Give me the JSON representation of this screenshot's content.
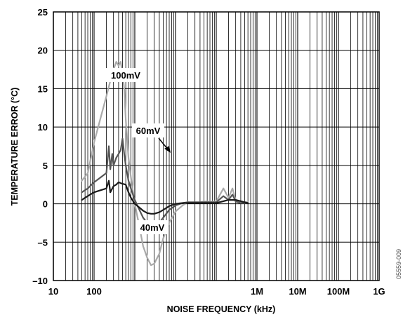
{
  "chart_data": {
    "type": "line",
    "xlabel": "NOISE FREQUENCY (kHz)",
    "ylabel": "TEMPERATURE ERROR (°C)",
    "x_scale": "log",
    "xlim": [
      10,
      1000000000
    ],
    "ylim": [
      -10,
      25
    ],
    "grid": true,
    "x_ticks": [
      10,
      100,
      1000000,
      10000000,
      100000000,
      1000000000
    ],
    "x_tick_labels": [
      "10",
      "100",
      "1M",
      "10M",
      "100M",
      "1G"
    ],
    "y_ticks": [
      -10,
      -5,
      0,
      5,
      10,
      15,
      20,
      25
    ],
    "y_tick_labels": [
      "–10",
      "–5",
      "0",
      "5",
      "10",
      "15",
      "20",
      "25"
    ],
    "figure_id": "05559-009",
    "series": [
      {
        "name": "100mV",
        "color": "#aaaaaa",
        "x": [
          50,
          70,
          100,
          150,
          200,
          250,
          300,
          350,
          400,
          450,
          500,
          550,
          600,
          700,
          800,
          1000,
          1300,
          1600,
          2000,
          2500,
          3000,
          4000,
          5000,
          7000,
          10000,
          15000,
          20000,
          30000,
          50000,
          100000,
          150000,
          200000,
          250000,
          300000,
          400000,
          600000
        ],
        "y": [
          3,
          4,
          8,
          11.5,
          14,
          16,
          17.5,
          18.5,
          18,
          18.5,
          17,
          15,
          11,
          6,
          3.5,
          0,
          -3,
          -5.5,
          -7,
          -8,
          -7.8,
          -6.5,
          -4.5,
          -2.5,
          -1,
          -0.2,
          0.2,
          0.1,
          0.3,
          0.3,
          2,
          0.8,
          2,
          0.5,
          0.2,
          0.2
        ]
      },
      {
        "name": "60mV",
        "color": "#555555",
        "x": [
          50,
          70,
          100,
          150,
          200,
          230,
          250,
          280,
          300,
          350,
          400,
          450,
          500,
          550,
          600,
          700,
          800,
          1000,
          1300,
          1600,
          2000,
          2500,
          3000,
          4000,
          5000,
          7000,
          10000,
          15000,
          20000,
          30000,
          50000,
          100000,
          150000,
          200000,
          250000,
          300000,
          400000,
          600000
        ],
        "y": [
          1.5,
          2,
          2.8,
          3.5,
          4,
          7.5,
          4.5,
          6.5,
          5,
          6,
          6.5,
          7,
          8.5,
          6.5,
          5,
          3,
          2,
          0.5,
          -0.8,
          -1.8,
          -2.5,
          -3,
          -3,
          -2.5,
          -1.8,
          -0.8,
          -0.2,
          0.1,
          0.2,
          0.2,
          0.2,
          0.2,
          1,
          0.5,
          1.2,
          0.3,
          0.1,
          0.1
        ]
      },
      {
        "name": "40mV",
        "color": "#1a1a1a",
        "x": [
          50,
          70,
          100,
          150,
          200,
          230,
          250,
          300,
          350,
          400,
          500,
          600,
          700,
          800,
          1000,
          1300,
          1600,
          2000,
          2500,
          3000,
          4000,
          5000,
          7000,
          10000,
          15000,
          20000,
          30000,
          50000,
          100000,
          200000,
          300000,
          600000
        ],
        "y": [
          0.5,
          1,
          1.5,
          1.8,
          2,
          3,
          1.5,
          2.3,
          2.5,
          2.8,
          2.6,
          2.5,
          1.5,
          0.8,
          0,
          -0.5,
          -0.9,
          -1.2,
          -1.3,
          -1.3,
          -1.1,
          -0.8,
          -0.3,
          0,
          0.1,
          0.1,
          0.1,
          0.1,
          0.1,
          0.5,
          0.5,
          0.1
        ]
      }
    ]
  }
}
